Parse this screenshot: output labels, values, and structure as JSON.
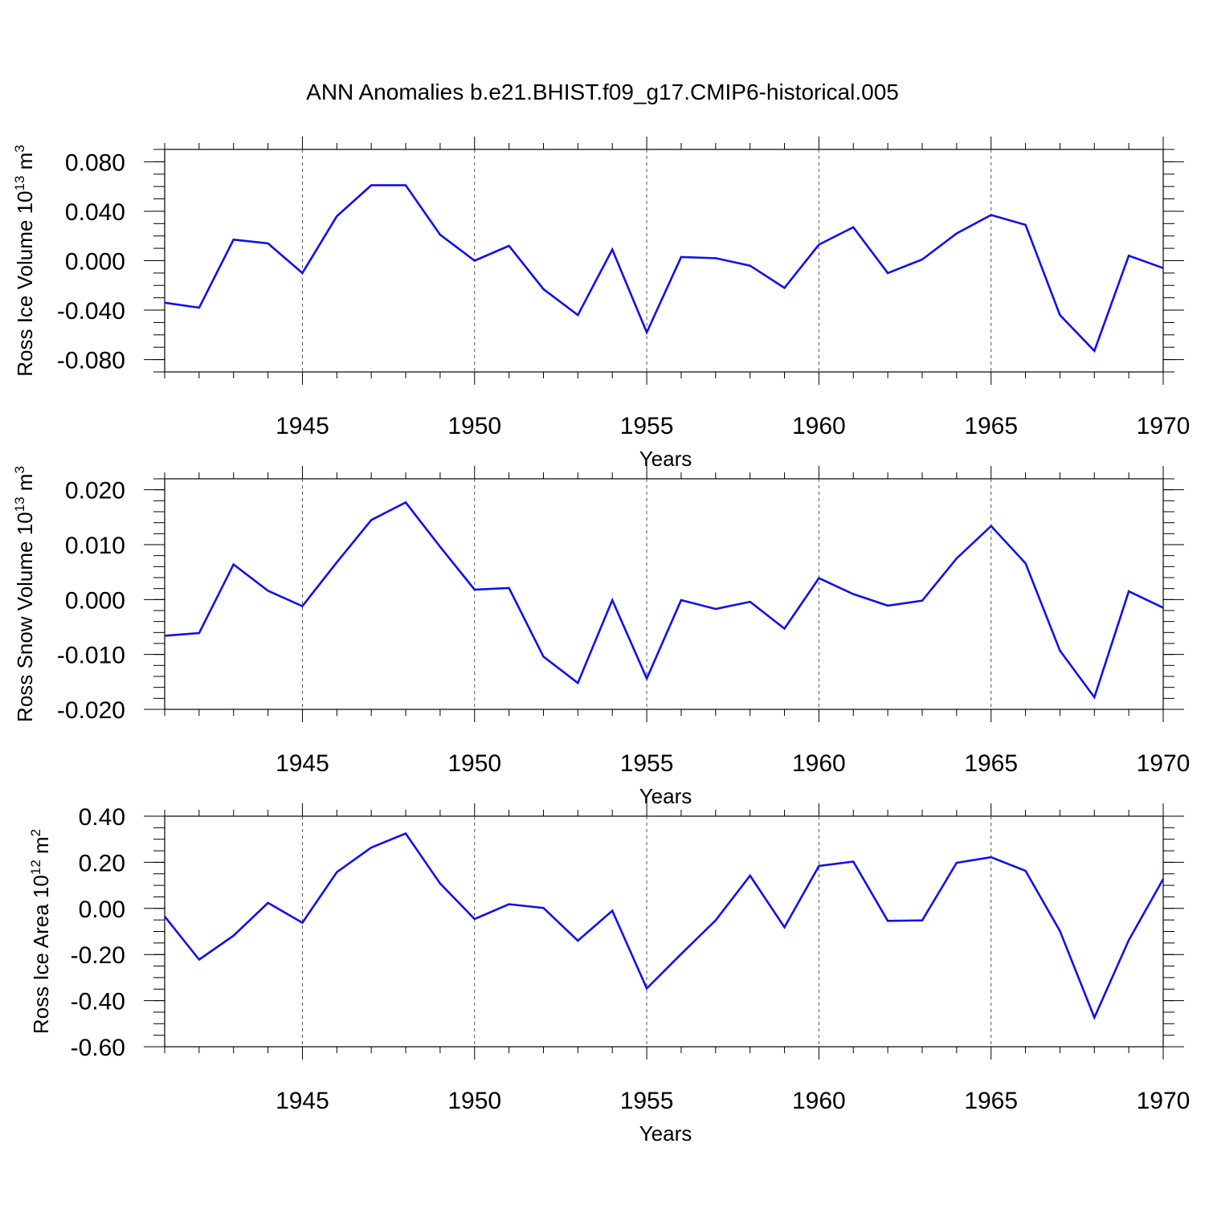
{
  "title": "ANN Anomalies b.e21.BHIST.f09_g17.CMIP6-historical.005",
  "colors": {
    "series": "#1010ee",
    "axis": "#000000",
    "grid": "#555555"
  },
  "chart_data": [
    {
      "type": "line",
      "ylabel": "Ross Ice Volume 10",
      "ylabel_sup": "13",
      "ylabel_unit": " m",
      "ylabel_unit_sup": "3",
      "xlabel": "Years",
      "xlim": [
        1941,
        1970
      ],
      "ylim": [
        -0.09,
        0.09
      ],
      "yticks": [
        -0.08,
        -0.04,
        0.0,
        0.04,
        0.08
      ],
      "ytick_labels": [
        "-0.080",
        "-0.040",
        "0.000",
        "0.040",
        "0.080"
      ],
      "yminor": [
        -0.09,
        -0.08,
        -0.07,
        -0.06,
        -0.05,
        -0.04,
        -0.03,
        -0.02,
        -0.01,
        0.0,
        0.01,
        0.02,
        0.03,
        0.04,
        0.05,
        0.06,
        0.07,
        0.08,
        0.09
      ],
      "xticks": [
        1945,
        1950,
        1955,
        1960,
        1965,
        1970
      ],
      "xtick_labels": [
        "1945",
        "1950",
        "1955",
        "1960",
        "1965",
        "1970"
      ],
      "x": [
        1941,
        1942,
        1943,
        1944,
        1945,
        1946,
        1947,
        1948,
        1949,
        1950,
        1951,
        1952,
        1953,
        1954,
        1955,
        1956,
        1957,
        1958,
        1959,
        1960,
        1961,
        1962,
        1963,
        1964,
        1965,
        1966,
        1967,
        1968,
        1969,
        1970
      ],
      "values": [
        -0.034,
        -0.038,
        0.017,
        0.014,
        -0.01,
        0.036,
        0.061,
        0.061,
        0.021,
        0.0,
        0.012,
        -0.023,
        -0.044,
        0.009,
        -0.058,
        0.003,
        0.002,
        -0.004,
        -0.022,
        0.013,
        0.027,
        -0.01,
        0.001,
        0.022,
        0.037,
        0.029,
        -0.044,
        -0.073,
        0.004,
        -0.006
      ]
    },
    {
      "type": "line",
      "ylabel": "Ross Snow Volume 10",
      "ylabel_sup": "13",
      "ylabel_unit": " m",
      "ylabel_unit_sup": "3",
      "xlabel": "Years",
      "xlim": [
        1941,
        1970
      ],
      "ylim": [
        -0.02,
        0.022
      ],
      "yticks": [
        -0.02,
        -0.01,
        0.0,
        0.01,
        0.02
      ],
      "ytick_labels": [
        "-0.020",
        "-0.010",
        "0.000",
        "0.010",
        "0.020"
      ],
      "yminor": [
        -0.02,
        -0.018,
        -0.016,
        -0.014,
        -0.012,
        -0.01,
        -0.008,
        -0.006,
        -0.004,
        -0.002,
        0.0,
        0.002,
        0.004,
        0.006,
        0.008,
        0.01,
        0.012,
        0.014,
        0.016,
        0.018,
        0.02,
        0.022
      ],
      "xticks": [
        1945,
        1950,
        1955,
        1960,
        1965,
        1970
      ],
      "xtick_labels": [
        "1945",
        "1950",
        "1955",
        "1960",
        "1965",
        "1970"
      ],
      "x": [
        1941,
        1942,
        1943,
        1944,
        1945,
        1946,
        1947,
        1948,
        1949,
        1950,
        1951,
        1952,
        1953,
        1954,
        1955,
        1956,
        1957,
        1958,
        1959,
        1960,
        1961,
        1962,
        1963,
        1964,
        1965,
        1966,
        1967,
        1968,
        1969,
        1970
      ],
      "values": [
        -0.0066,
        -0.0061,
        0.0064,
        0.0016,
        -0.0012,
        0.0068,
        0.0145,
        0.0177,
        0.0096,
        0.0018,
        0.0021,
        -0.0104,
        -0.0152,
        -0.0001,
        -0.0144,
        -0.0001,
        -0.0017,
        -0.0004,
        -0.0053,
        0.0039,
        0.001,
        -0.0011,
        -0.0002,
        0.0075,
        0.0134,
        0.0066,
        -0.0093,
        -0.0178,
        0.0015,
        -0.0015
      ]
    },
    {
      "type": "line",
      "ylabel": "Ross Ice Area 10",
      "ylabel_sup": "12",
      "ylabel_unit": " m",
      "ylabel_unit_sup": "2",
      "xlabel": "Years",
      "xlim": [
        1941,
        1970
      ],
      "ylim": [
        -0.6,
        0.4
      ],
      "yticks": [
        -0.6,
        -0.4,
        -0.2,
        0.0,
        0.2,
        0.4
      ],
      "ytick_labels": [
        "-0.60",
        "-0.40",
        "-0.20",
        "0.00",
        "0.20",
        "0.40"
      ],
      "yminor": [
        -0.6,
        -0.55,
        -0.5,
        -0.45,
        -0.4,
        -0.35,
        -0.3,
        -0.25,
        -0.2,
        -0.15,
        -0.1,
        -0.05,
        0.0,
        0.05,
        0.1,
        0.15,
        0.2,
        0.25,
        0.3,
        0.35,
        0.4
      ],
      "xticks": [
        1945,
        1950,
        1955,
        1960,
        1965,
        1970
      ],
      "xtick_labels": [
        "1945",
        "1950",
        "1955",
        "1960",
        "1965",
        "1970"
      ],
      "x": [
        1941,
        1942,
        1943,
        1944,
        1945,
        1946,
        1947,
        1948,
        1949,
        1950,
        1951,
        1952,
        1953,
        1954,
        1955,
        1956,
        1957,
        1958,
        1959,
        1960,
        1961,
        1962,
        1963,
        1964,
        1965,
        1966,
        1967,
        1968,
        1969,
        1970
      ],
      "values": [
        -0.035,
        -0.222,
        -0.118,
        0.024,
        -0.062,
        0.157,
        0.264,
        0.325,
        0.108,
        -0.046,
        0.018,
        0.002,
        -0.14,
        -0.01,
        -0.347,
        -0.198,
        -0.052,
        0.142,
        -0.082,
        0.184,
        0.203,
        -0.054,
        -0.052,
        0.198,
        0.222,
        0.163,
        -0.098,
        -0.473,
        -0.138,
        0.128
      ]
    }
  ]
}
